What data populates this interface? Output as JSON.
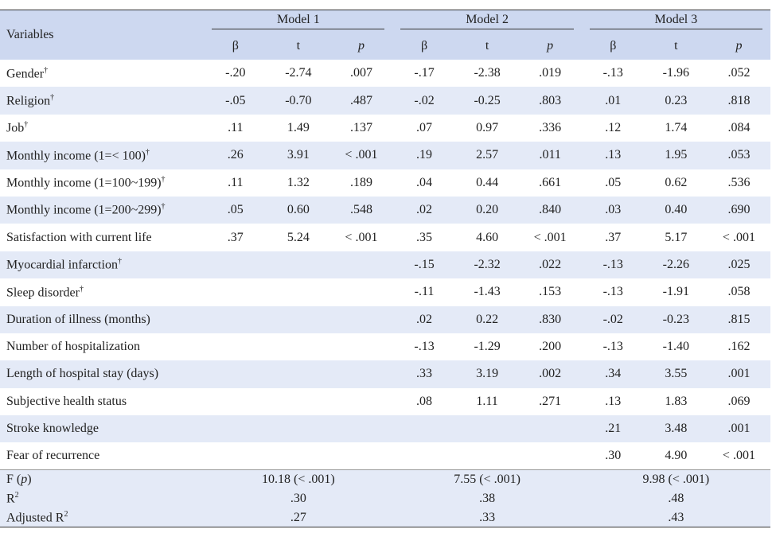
{
  "table": {
    "header": {
      "first": "Variables",
      "models": [
        {
          "name": "Model 1",
          "columns": [
            "β",
            "t",
            "p"
          ]
        },
        {
          "name": "Model 2",
          "columns": [
            "β",
            "t",
            "p"
          ]
        },
        {
          "name": "Model 3",
          "columns": [
            "β",
            "t",
            "p"
          ]
        }
      ]
    },
    "rows": [
      {
        "label": "Gender",
        "mark": "†",
        "model1": [
          "-.20",
          "-2.74",
          ".007"
        ],
        "model2": [
          "-.17",
          "-2.38",
          ".019"
        ],
        "model3": [
          "-.13",
          "-1.96",
          ".052"
        ]
      },
      {
        "label": "Religion",
        "mark": "†",
        "model1": [
          "-.05",
          "-0.70",
          ".487"
        ],
        "model2": [
          "-.02",
          "-0.25",
          ".803"
        ],
        "model3": [
          ".01",
          "0.23",
          ".818"
        ]
      },
      {
        "label": "Job",
        "mark": "†",
        "model1": [
          ".11",
          "1.49",
          ".137"
        ],
        "model2": [
          ".07",
          "0.97",
          ".336"
        ],
        "model3": [
          ".12",
          "1.74",
          ".084"
        ]
      },
      {
        "label": "Monthly income (1=< 100)",
        "mark": "†",
        "model1": [
          ".26",
          "3.91",
          "< .001"
        ],
        "model2": [
          ".19",
          "2.57",
          ".011"
        ],
        "model3": [
          ".13",
          "1.95",
          ".053"
        ]
      },
      {
        "label": "Monthly income (1=100~199)",
        "mark": "†",
        "model1": [
          ".11",
          "1.32",
          ".189"
        ],
        "model2": [
          ".04",
          "0.44",
          ".661"
        ],
        "model3": [
          ".05",
          "0.62",
          ".536"
        ]
      },
      {
        "label": "Monthly income (1=200~299)",
        "mark": "†",
        "model1": [
          ".05",
          "0.60",
          ".548"
        ],
        "model2": [
          ".02",
          "0.20",
          ".840"
        ],
        "model3": [
          ".03",
          "0.40",
          ".690"
        ]
      },
      {
        "label": "Satisfaction with current life",
        "model1": [
          ".37",
          "5.24",
          "< .001"
        ],
        "model2": [
          ".35",
          "4.60",
          "< .001"
        ],
        "model3": [
          ".37",
          "5.17",
          "< .001"
        ]
      },
      {
        "label": "Myocardial infarction",
        "mark": "†",
        "model2": [
          "-.15",
          "-2.32",
          ".022"
        ],
        "model3": [
          "-.13",
          "-2.26",
          ".025"
        ]
      },
      {
        "label": "Sleep disorder",
        "mark": "†",
        "model2": [
          "-.11",
          "-1.43",
          ".153"
        ],
        "model3": [
          "-.13",
          "-1.91",
          ".058"
        ]
      },
      {
        "label": "Duration of illness (months)",
        "model2": [
          ".02",
          "0.22",
          ".830"
        ],
        "model3": [
          "-.02",
          "-0.23",
          ".815"
        ]
      },
      {
        "label": "Number of hospitalization",
        "model2": [
          "-.13",
          "-1.29",
          ".200"
        ],
        "model3": [
          "-.13",
          "-1.40",
          ".162"
        ]
      },
      {
        "label": "Length of hospital stay (days)",
        "model2": [
          ".33",
          "3.19",
          ".002"
        ],
        "model3": [
          ".34",
          "3.55",
          ".001"
        ]
      },
      {
        "label": "Subjective health status",
        "model2": [
          ".08",
          "1.11",
          ".271"
        ],
        "model3": [
          ".13",
          "1.83",
          ".069"
        ]
      },
      {
        "label": "Stroke knowledge",
        "model3": [
          ".21",
          "3.48",
          ".001"
        ]
      },
      {
        "label": "Fear of recurrence",
        "model3": [
          ".30",
          "4.90",
          "< .001"
        ]
      }
    ],
    "footer": [
      {
        "label": [
          "F (",
          "p",
          ")"
        ],
        "values": [
          "10.18 (< .001)",
          "7.55 (< .001)",
          "9.98 (< .001)"
        ]
      },
      {
        "label": [
          "R"
        ],
        "sup": "2",
        "values": [
          ".30",
          ".38",
          ".48"
        ]
      },
      {
        "label": [
          "Adjusted R"
        ],
        "sup": "2",
        "values": [
          ".27",
          ".33",
          ".43"
        ]
      }
    ]
  }
}
